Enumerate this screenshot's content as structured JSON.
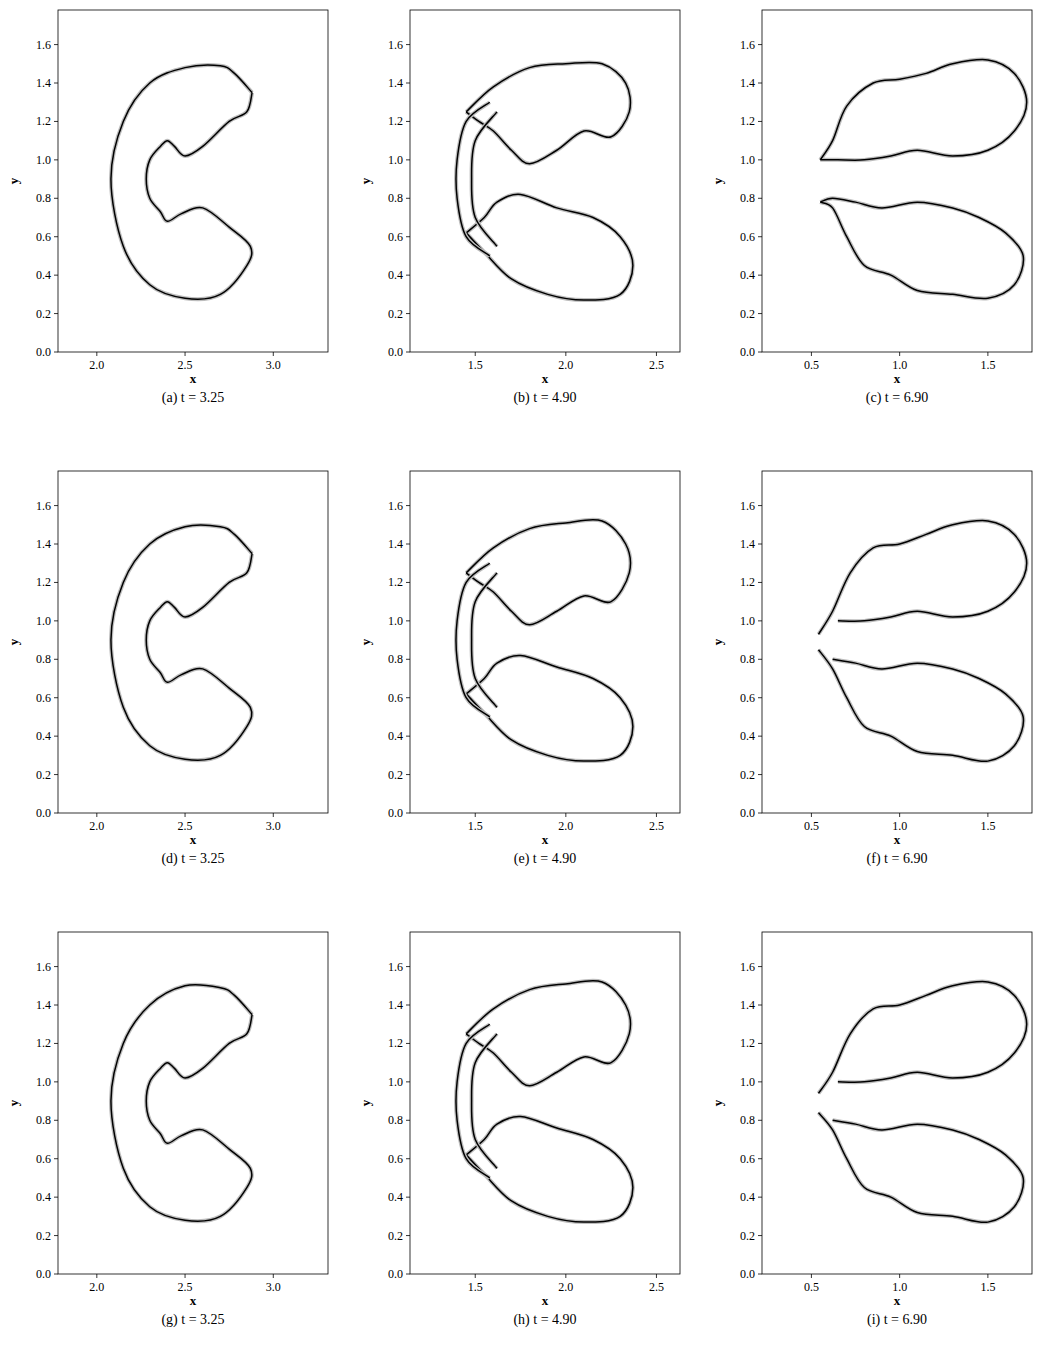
{
  "chart_data": [
    {
      "type": "contour",
      "title": "(a) t = 3.25",
      "x_label": "x",
      "y_label": "y",
      "color": "#000000",
      "xlim": [
        1.78,
        3.31
      ],
      "ylim": [
        0,
        1.78
      ],
      "xticks": [
        {
          "value": 2.0,
          "label": "2.0"
        },
        2.5,
        {
          "value": 3.0,
          "label": "3.0"
        }
      ],
      "yticks": [
        {
          "value": 0,
          "label": "0.0"
        },
        0.2,
        0.4,
        0.6,
        0.8,
        {
          "value": 1.0,
          "label": "1.0"
        },
        1.2,
        1.4,
        1.6
      ],
      "contours": [
        {
          "x": [
            2.88,
            2.78,
            2.7,
            2.5,
            2.3,
            2.15,
            2.08,
            2.15,
            2.3,
            2.5,
            2.7,
            2.85,
            2.87,
            2.75,
            2.6,
            2.48,
            2.4,
            2.36,
            2.3,
            2.28,
            2.3,
            2.36,
            2.4,
            2.44,
            2.5,
            2.6,
            2.75,
            2.85,
            2.88
          ],
          "y": [
            1.35,
            1.45,
            1.49,
            1.48,
            1.4,
            1.2,
            0.9,
            0.55,
            0.35,
            0.28,
            0.3,
            0.45,
            0.55,
            0.65,
            0.75,
            0.72,
            0.68,
            0.73,
            0.8,
            0.9,
            1.0,
            1.07,
            1.1,
            1.07,
            1.02,
            1.07,
            1.2,
            1.25,
            1.35
          ]
        }
      ]
    },
    {
      "type": "contour",
      "title": "(b) t = 4.90",
      "x_label": "x",
      "y_label": "y",
      "color": "#000000",
      "xlim": [
        1.14,
        2.63
      ],
      "ylim": [
        0,
        1.78
      ],
      "xticks": [
        1.5,
        {
          "value": 2.0,
          "label": "2.0"
        },
        2.5
      ],
      "yticks": [
        {
          "value": 0,
          "label": "0.0"
        },
        0.2,
        0.4,
        0.6,
        0.8,
        {
          "value": 1.0,
          "label": "1.0"
        },
        1.2,
        1.4,
        1.6
      ],
      "contours": [
        {
          "x": [
            1.45,
            1.6,
            1.8,
            2.0,
            2.2,
            2.33,
            2.35,
            2.25,
            2.1,
            1.95,
            1.8,
            1.7,
            1.6,
            1.52,
            1.45
          ],
          "y": [
            1.25,
            1.38,
            1.48,
            1.5,
            1.5,
            1.4,
            1.25,
            1.12,
            1.15,
            1.05,
            0.98,
            1.05,
            1.15,
            1.2,
            1.25
          ]
        },
        {
          "x": [
            1.45,
            1.55,
            1.7,
            1.9,
            2.1,
            2.3,
            2.37,
            2.3,
            2.15,
            1.95,
            1.75,
            1.62,
            1.55,
            1.45
          ],
          "y": [
            0.62,
            0.52,
            0.38,
            0.3,
            0.27,
            0.3,
            0.45,
            0.6,
            0.7,
            0.75,
            0.82,
            0.78,
            0.7,
            0.62
          ]
        },
        {
          "x": [
            1.58,
            1.45,
            1.4,
            1.4,
            1.45,
            1.58
          ],
          "y": [
            1.3,
            1.2,
            1.0,
            0.8,
            0.6,
            0.5
          ]
        },
        {
          "x": [
            1.62,
            1.5,
            1.48,
            1.5,
            1.62
          ],
          "y": [
            1.25,
            1.1,
            0.9,
            0.7,
            0.55
          ]
        }
      ]
    },
    {
      "type": "contour",
      "title": "(c) t = 6.90",
      "x_label": "x",
      "y_label": "y",
      "color": "#000000",
      "xlim": [
        0.22,
        1.75
      ],
      "ylim": [
        0,
        1.78
      ],
      "xticks": [
        0.5,
        {
          "value": 1.0,
          "label": "1.0"
        },
        1.5
      ],
      "yticks": [
        {
          "value": 0,
          "label": "0.0"
        },
        0.2,
        0.4,
        0.6,
        0.8,
        {
          "value": 1.0,
          "label": "1.0"
        },
        1.2,
        1.4,
        1.6
      ],
      "contours": [
        {
          "x": [
            0.55,
            0.62,
            0.7,
            0.85,
            1.0,
            1.15,
            1.3,
            1.5,
            1.65,
            1.72,
            1.65,
            1.5,
            1.3,
            1.1,
            0.95,
            0.8,
            0.65,
            0.55
          ],
          "y": [
            1.0,
            1.1,
            1.28,
            1.4,
            1.42,
            1.45,
            1.5,
            1.52,
            1.45,
            1.3,
            1.15,
            1.05,
            1.02,
            1.05,
            1.02,
            1.0,
            1.0,
            1.0
          ]
        },
        {
          "x": [
            0.55,
            0.62,
            0.7,
            0.8,
            0.95,
            1.1,
            1.3,
            1.5,
            1.65,
            1.7,
            1.6,
            1.45,
            1.3,
            1.1,
            0.9,
            0.75,
            0.62,
            0.55
          ],
          "y": [
            0.78,
            0.75,
            0.6,
            0.45,
            0.4,
            0.32,
            0.3,
            0.28,
            0.35,
            0.5,
            0.62,
            0.7,
            0.75,
            0.78,
            0.75,
            0.78,
            0.8,
            0.78
          ]
        }
      ]
    },
    {
      "type": "contour",
      "title": "(d) t = 3.25",
      "x_label": "x",
      "y_label": "y",
      "color": "#000000",
      "xlim": [
        1.78,
        3.31
      ],
      "ylim": [
        0,
        1.78
      ],
      "xticks": [
        {
          "value": 2.0,
          "label": "2.0"
        },
        2.5,
        {
          "value": 3.0,
          "label": "3.0"
        }
      ],
      "yticks": [
        {
          "value": 0,
          "label": "0.0"
        },
        0.2,
        0.4,
        0.6,
        0.8,
        {
          "value": 1.0,
          "label": "1.0"
        },
        1.2,
        1.4,
        1.6
      ],
      "contours": [
        {
          "x": [
            2.88,
            2.78,
            2.7,
            2.5,
            2.3,
            2.15,
            2.08,
            2.15,
            2.3,
            2.5,
            2.7,
            2.85,
            2.87,
            2.75,
            2.6,
            2.48,
            2.4,
            2.36,
            2.3,
            2.28,
            2.3,
            2.36,
            2.4,
            2.44,
            2.5,
            2.6,
            2.75,
            2.85,
            2.88
          ],
          "y": [
            1.35,
            1.45,
            1.49,
            1.49,
            1.4,
            1.2,
            0.9,
            0.55,
            0.35,
            0.28,
            0.3,
            0.45,
            0.55,
            0.65,
            0.75,
            0.72,
            0.68,
            0.73,
            0.8,
            0.9,
            1.0,
            1.07,
            1.1,
            1.07,
            1.02,
            1.07,
            1.2,
            1.25,
            1.35
          ]
        }
      ]
    },
    {
      "type": "contour",
      "title": "(e) t = 4.90",
      "x_label": "x",
      "y_label": "y",
      "color": "#000000",
      "xlim": [
        1.14,
        2.63
      ],
      "ylim": [
        0,
        1.78
      ],
      "xticks": [
        1.5,
        {
          "value": 2.0,
          "label": "2.0"
        },
        2.5
      ],
      "yticks": [
        {
          "value": 0,
          "label": "0.0"
        },
        0.2,
        0.4,
        0.6,
        0.8,
        {
          "value": 1.0,
          "label": "1.0"
        },
        1.2,
        1.4,
        1.6
      ],
      "contours": [
        {
          "x": [
            1.45,
            1.6,
            1.8,
            2.0,
            2.2,
            2.33,
            2.35,
            2.25,
            2.1,
            1.95,
            1.8,
            1.7,
            1.6,
            1.52,
            1.45
          ],
          "y": [
            1.25,
            1.38,
            1.48,
            1.51,
            1.52,
            1.4,
            1.25,
            1.1,
            1.13,
            1.05,
            0.98,
            1.05,
            1.15,
            1.2,
            1.25
          ]
        },
        {
          "x": [
            1.45,
            1.55,
            1.7,
            1.9,
            2.1,
            2.3,
            2.37,
            2.3,
            2.15,
            1.95,
            1.75,
            1.62,
            1.55,
            1.45
          ],
          "y": [
            0.62,
            0.52,
            0.38,
            0.3,
            0.27,
            0.3,
            0.45,
            0.6,
            0.7,
            0.76,
            0.82,
            0.78,
            0.7,
            0.62
          ]
        },
        {
          "x": [
            1.58,
            1.45,
            1.4,
            1.4,
            1.45,
            1.58
          ],
          "y": [
            1.3,
            1.2,
            1.0,
            0.8,
            0.6,
            0.5
          ]
        },
        {
          "x": [
            1.62,
            1.5,
            1.48,
            1.5,
            1.62
          ],
          "y": [
            1.25,
            1.1,
            0.9,
            0.7,
            0.55
          ]
        }
      ]
    },
    {
      "type": "contour",
      "title": "(f) t = 6.90",
      "x_label": "x",
      "y_label": "y",
      "color": "#000000",
      "xlim": [
        0.22,
        1.75
      ],
      "ylim": [
        0,
        1.78
      ],
      "xticks": [
        0.5,
        {
          "value": 1.0,
          "label": "1.0"
        },
        1.5
      ],
      "yticks": [
        {
          "value": 0,
          "label": "0.0"
        },
        0.2,
        0.4,
        0.6,
        0.8,
        {
          "value": 1.0,
          "label": "1.0"
        },
        1.2,
        1.4,
        1.6
      ],
      "contours": [
        {
          "x": [
            0.54,
            0.62,
            0.72,
            0.85,
            1.0,
            1.15,
            1.3,
            1.5,
            1.65,
            1.72,
            1.65,
            1.5,
            1.3,
            1.1,
            0.95,
            0.8,
            0.65
          ],
          "y": [
            0.93,
            1.05,
            1.25,
            1.38,
            1.4,
            1.45,
            1.5,
            1.52,
            1.45,
            1.3,
            1.15,
            1.05,
            1.02,
            1.05,
            1.02,
            1.0,
            1.0
          ]
        },
        {
          "x": [
            0.54,
            0.62,
            0.7,
            0.8,
            0.95,
            1.1,
            1.3,
            1.5,
            1.65,
            1.7,
            1.6,
            1.45,
            1.3,
            1.1,
            0.9,
            0.75,
            0.62
          ],
          "y": [
            0.85,
            0.75,
            0.6,
            0.45,
            0.4,
            0.32,
            0.3,
            0.27,
            0.35,
            0.5,
            0.62,
            0.7,
            0.75,
            0.78,
            0.75,
            0.78,
            0.8
          ]
        }
      ]
    },
    {
      "type": "contour",
      "title": "(g) t = 3.25",
      "x_label": "x",
      "y_label": "y",
      "color": "#000000",
      "xlim": [
        1.78,
        3.31
      ],
      "ylim": [
        0,
        1.78
      ],
      "xticks": [
        {
          "value": 2.0,
          "label": "2.0"
        },
        2.5,
        {
          "value": 3.0,
          "label": "3.0"
        }
      ],
      "yticks": [
        {
          "value": 0,
          "label": "0.0"
        },
        0.2,
        0.4,
        0.6,
        0.8,
        {
          "value": 1.0,
          "label": "1.0"
        },
        1.2,
        1.4,
        1.6
      ],
      "contours": [
        {
          "x": [
            2.88,
            2.78,
            2.7,
            2.5,
            2.3,
            2.15,
            2.08,
            2.15,
            2.3,
            2.5,
            2.7,
            2.85,
            2.87,
            2.75,
            2.6,
            2.48,
            2.4,
            2.36,
            2.3,
            2.28,
            2.3,
            2.36,
            2.4,
            2.44,
            2.5,
            2.6,
            2.75,
            2.85,
            2.88
          ],
          "y": [
            1.35,
            1.45,
            1.49,
            1.5,
            1.4,
            1.2,
            0.9,
            0.55,
            0.35,
            0.28,
            0.3,
            0.45,
            0.55,
            0.65,
            0.75,
            0.72,
            0.68,
            0.73,
            0.8,
            0.9,
            1.0,
            1.07,
            1.1,
            1.07,
            1.02,
            1.07,
            1.2,
            1.25,
            1.35
          ]
        }
      ]
    },
    {
      "type": "contour",
      "title": "(h) t = 4.90",
      "x_label": "x",
      "y_label": "y",
      "color": "#000000",
      "xlim": [
        1.14,
        2.63
      ],
      "ylim": [
        0,
        1.78
      ],
      "xticks": [
        1.5,
        {
          "value": 2.0,
          "label": "2.0"
        },
        2.5
      ],
      "yticks": [
        {
          "value": 0,
          "label": "0.0"
        },
        0.2,
        0.4,
        0.6,
        0.8,
        {
          "value": 1.0,
          "label": "1.0"
        },
        1.2,
        1.4,
        1.6
      ],
      "contours": [
        {
          "x": [
            1.45,
            1.6,
            1.8,
            2.0,
            2.2,
            2.33,
            2.35,
            2.25,
            2.1,
            1.95,
            1.8,
            1.7,
            1.6,
            1.52,
            1.45
          ],
          "y": [
            1.25,
            1.38,
            1.48,
            1.51,
            1.52,
            1.4,
            1.25,
            1.1,
            1.13,
            1.05,
            0.98,
            1.05,
            1.15,
            1.2,
            1.25
          ]
        },
        {
          "x": [
            1.45,
            1.55,
            1.7,
            1.9,
            2.1,
            2.3,
            2.37,
            2.3,
            2.15,
            1.95,
            1.75,
            1.62,
            1.55,
            1.45
          ],
          "y": [
            0.62,
            0.52,
            0.38,
            0.3,
            0.27,
            0.3,
            0.45,
            0.6,
            0.7,
            0.76,
            0.82,
            0.78,
            0.7,
            0.62
          ]
        },
        {
          "x": [
            1.58,
            1.45,
            1.4,
            1.4,
            1.45,
            1.58
          ],
          "y": [
            1.3,
            1.2,
            1.0,
            0.8,
            0.6,
            0.5
          ]
        },
        {
          "x": [
            1.62,
            1.5,
            1.48,
            1.5,
            1.62
          ],
          "y": [
            1.25,
            1.1,
            0.9,
            0.7,
            0.55
          ]
        }
      ]
    },
    {
      "type": "contour",
      "title": "(i) t = 6.90",
      "x_label": "x",
      "y_label": "y",
      "color": "#000000",
      "xlim": [
        0.22,
        1.75
      ],
      "ylim": [
        0,
        1.78
      ],
      "xticks": [
        0.5,
        {
          "value": 1.0,
          "label": "1.0"
        },
        1.5
      ],
      "yticks": [
        {
          "value": 0,
          "label": "0.0"
        },
        0.2,
        0.4,
        0.6,
        0.8,
        {
          "value": 1.0,
          "label": "1.0"
        },
        1.2,
        1.4,
        1.6
      ],
      "contours": [
        {
          "x": [
            0.54,
            0.62,
            0.72,
            0.85,
            1.0,
            1.15,
            1.3,
            1.5,
            1.65,
            1.72,
            1.65,
            1.5,
            1.3,
            1.1,
            0.95,
            0.8,
            0.65
          ],
          "y": [
            0.94,
            1.05,
            1.25,
            1.38,
            1.4,
            1.45,
            1.5,
            1.52,
            1.45,
            1.3,
            1.15,
            1.05,
            1.02,
            1.05,
            1.02,
            1.0,
            1.0
          ]
        },
        {
          "x": [
            0.54,
            0.62,
            0.7,
            0.8,
            0.95,
            1.1,
            1.3,
            1.5,
            1.65,
            1.7,
            1.6,
            1.45,
            1.3,
            1.1,
            0.9,
            0.75,
            0.62
          ],
          "y": [
            0.84,
            0.75,
            0.6,
            0.45,
            0.4,
            0.32,
            0.3,
            0.27,
            0.35,
            0.5,
            0.62,
            0.7,
            0.75,
            0.78,
            0.75,
            0.78,
            0.8
          ]
        }
      ]
    }
  ]
}
